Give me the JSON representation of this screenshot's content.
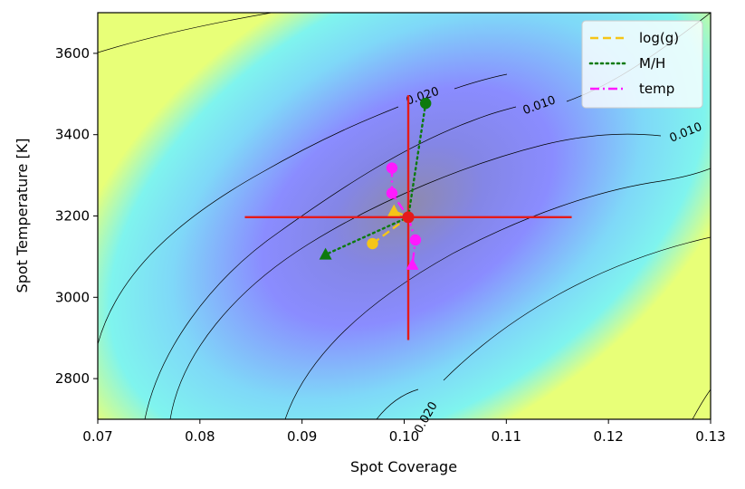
{
  "chart_data": {
    "type": "contour",
    "xlabel": "Spot Coverage",
    "ylabel": "Spot Temperature [K]",
    "xlim": [
      0.07,
      0.13
    ],
    "ylim": [
      2700,
      3700
    ],
    "x_ticks": [
      0.07,
      0.08,
      0.09,
      0.1,
      0.11,
      0.12,
      0.13
    ],
    "x_tick_labels": [
      "0.07",
      "0.08",
      "0.09",
      "0.10",
      "0.11",
      "0.12",
      "0.13"
    ],
    "y_ticks": [
      2800,
      3000,
      3200,
      3400,
      3600
    ],
    "y_tick_labels": [
      "2800",
      "3000",
      "3200",
      "3400",
      "3600"
    ],
    "grid": false,
    "legend_position": "top-right",
    "background_colormap": [
      "#e8ff78",
      "#7ff4f4",
      "#8a8cff",
      "#8e8aac"
    ],
    "contour_labels": [
      "0.020",
      "0.010",
      "0.010",
      "0.020"
    ],
    "best_fit": {
      "x": 0.1004,
      "y": 3197,
      "x_err": [
        0.0844,
        0.1164
      ],
      "y_err": [
        2895,
        3497
      ],
      "color": "#e51a1a"
    },
    "series": [
      {
        "name": "log(g)",
        "linestyle": "dashed",
        "color": "#f5c518",
        "points": [
          {
            "x": 0.0969,
            "y": 3132,
            "marker": "circle"
          },
          {
            "x": 0.1004,
            "y": 3197,
            "marker": "none"
          },
          {
            "x": 0.099,
            "y": 3212,
            "marker": "triangle"
          }
        ]
      },
      {
        "name": "M/H",
        "linestyle": "dotted",
        "color": "#0d7a0d",
        "points": [
          {
            "x": 0.1021,
            "y": 3477,
            "marker": "circle"
          },
          {
            "x": 0.1004,
            "y": 3197,
            "marker": "none"
          },
          {
            "x": 0.0923,
            "y": 3105,
            "marker": "triangle"
          }
        ]
      },
      {
        "name": "temp",
        "linestyle": "dashdot",
        "color": "#ff19ff",
        "points": [
          {
            "x": 0.0988,
            "y": 3318,
            "marker": "circle"
          },
          {
            "x": 0.0988,
            "y": 3256,
            "marker": "circle"
          },
          {
            "x": 0.1004,
            "y": 3197,
            "marker": "none"
          },
          {
            "x": 0.1011,
            "y": 3141,
            "marker": "circle"
          },
          {
            "x": 0.1008,
            "y": 3080,
            "marker": "triangle"
          }
        ]
      }
    ]
  }
}
